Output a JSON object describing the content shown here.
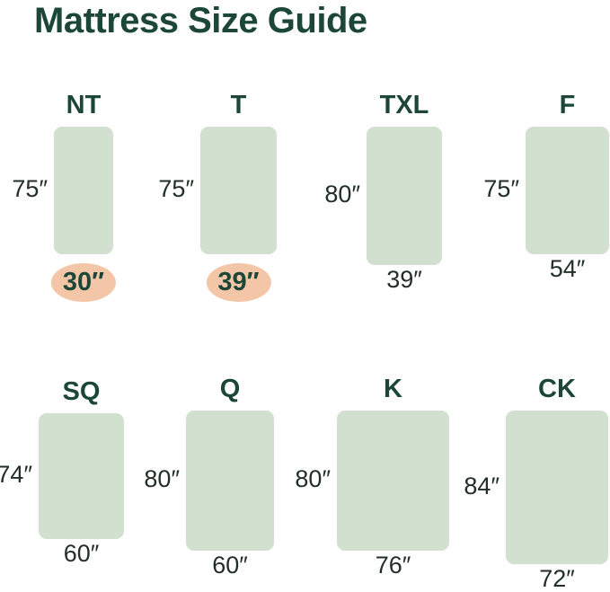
{
  "title": "Mattress Size Guide",
  "colors": {
    "background": "#ffffff",
    "title": "#1b4638",
    "label": "#1b4638",
    "measurement": "#222f28",
    "mattress": "#d2e0cf",
    "highlight": "#f3c6a8"
  },
  "mattresses": [
    {
      "abbr": "NT",
      "length_label": "75″",
      "width_label": "30″",
      "length_in": 75,
      "width_in": 30,
      "width_highlighted": true
    },
    {
      "abbr": "T",
      "length_label": "75″",
      "width_label": "39″",
      "length_in": 75,
      "width_in": 39,
      "width_highlighted": true
    },
    {
      "abbr": "TXL",
      "length_label": "80″",
      "width_label": "39″",
      "length_in": 80,
      "width_in": 39,
      "width_highlighted": false
    },
    {
      "abbr": "F",
      "length_label": "75″",
      "width_label": "54″",
      "length_in": 75,
      "width_in": 54,
      "width_highlighted": false
    },
    {
      "abbr": "SQ",
      "length_label": "74″",
      "width_label": "60″",
      "length_in": 74,
      "width_in": 60,
      "width_highlighted": false
    },
    {
      "abbr": "Q",
      "length_label": "80″",
      "width_label": "60″",
      "length_in": 80,
      "width_in": 60,
      "width_highlighted": false
    },
    {
      "abbr": "K",
      "length_label": "80″",
      "width_label": "76″",
      "length_in": 80,
      "width_in": 76,
      "width_highlighted": false
    },
    {
      "abbr": "CK",
      "length_label": "84″",
      "width_label": "72″",
      "length_in": 84,
      "width_in": 72,
      "width_highlighted": false
    }
  ]
}
